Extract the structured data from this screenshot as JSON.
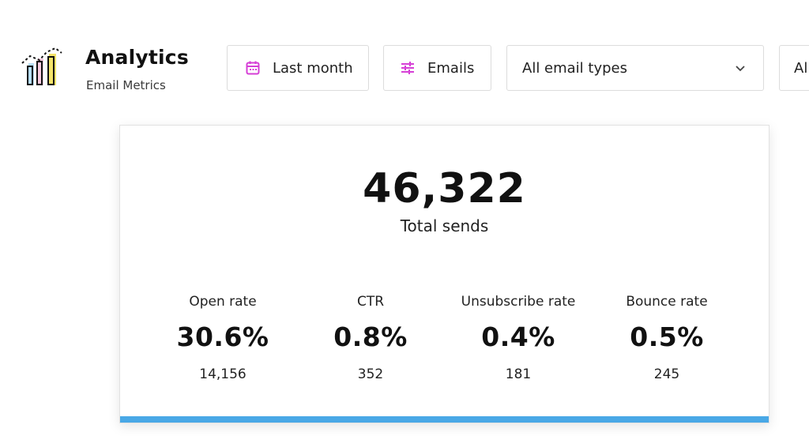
{
  "header": {
    "title": "Analytics",
    "subtitle": "Email Metrics",
    "logo_icon": "analytics-bars-icon"
  },
  "filters": {
    "date": {
      "label": "Last month",
      "icon": "calendar-icon",
      "icon_color": "#d63fd6"
    },
    "emails": {
      "label": "Emails",
      "icon": "sliders-icon",
      "icon_color": "#d63fd6"
    },
    "types": {
      "label": "All email types",
      "icon": "chevron-down-icon"
    },
    "extra": {
      "label": "All"
    }
  },
  "summary": {
    "total_value": "46,322",
    "total_label": "Total sends"
  },
  "metrics": [
    {
      "label": "Open rate",
      "value": "30.6%",
      "count": "14,156"
    },
    {
      "label": "CTR",
      "value": "0.8%",
      "count": "352"
    },
    {
      "label": "Unsubscribe rate",
      "value": "0.4%",
      "count": "181"
    },
    {
      "label": "Bounce rate",
      "value": "0.5%",
      "count": "245"
    }
  ],
  "colors": {
    "accent": "#d63fd6",
    "card_bottom_bar": "#49a8e6",
    "logo_yellow": "#f3e36a",
    "logo_pink": "#f2a6c9",
    "logo_blue": "#7cc3ee"
  }
}
